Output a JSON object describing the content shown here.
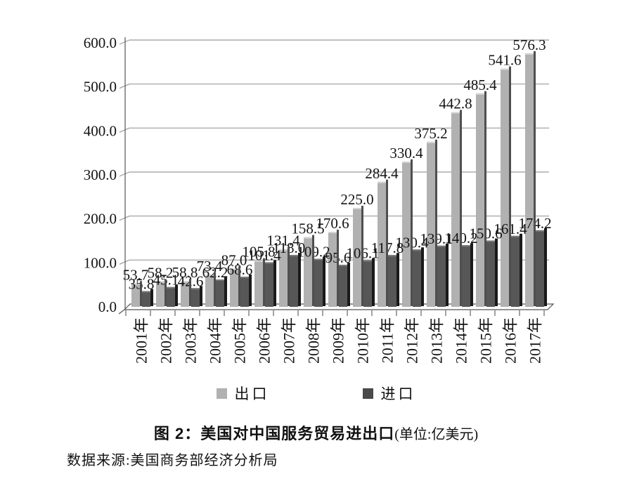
{
  "chart_data": {
    "type": "bar",
    "title": "图 2：美国对中国服务贸易进出口",
    "title_unit": "(单位:亿美元)",
    "source": "数据来源:美国商务部经济分析局",
    "unit": "亿美元",
    "categories": [
      "2001年",
      "2002年",
      "2003年",
      "2004年",
      "2005年",
      "2006年",
      "2007年",
      "2008年",
      "2009年",
      "2010年",
      "2011年",
      "2012年",
      "2013年",
      "2014年",
      "2015年",
      "2016年",
      "2017年"
    ],
    "series": [
      {
        "name": "出口",
        "values": [
          53.7,
          58.2,
          58.8,
          73.4,
          87.0,
          105.8,
          131.4,
          158.5,
          170.6,
          225.0,
          284.4,
          330.4,
          375.2,
          442.8,
          485.4,
          541.6,
          576.3
        ]
      },
      {
        "name": "进口",
        "values": [
          35.8,
          45.1,
          42.6,
          62.2,
          68.6,
          101.4,
          118.0,
          109.2,
          95.6,
          106.1,
          117.8,
          130.4,
          139.1,
          140.2,
          150.6,
          161.4,
          174.2
        ]
      }
    ],
    "yaxis": {
      "ticks": [
        0,
        100,
        200,
        300,
        400,
        500,
        600
      ],
      "decimals": 1
    },
    "ylim": [
      0,
      600
    ],
    "xlabel": "",
    "ylabel": "",
    "grid": true,
    "legend_position": "bottom",
    "style": "3d-column",
    "colors": {
      "export_face": "#b1b1b1",
      "export_top": "#d6d6d6",
      "export_side": "#4f4f4f",
      "import_face": "#575757",
      "import_top": "#7a7a7a",
      "import_side": "#1a1a1a",
      "legend_export": "#b1b1b1",
      "legend_import": "#4a4a4a",
      "grid": "#9a9a9a",
      "axis": "#555555",
      "text": "#141414"
    }
  }
}
